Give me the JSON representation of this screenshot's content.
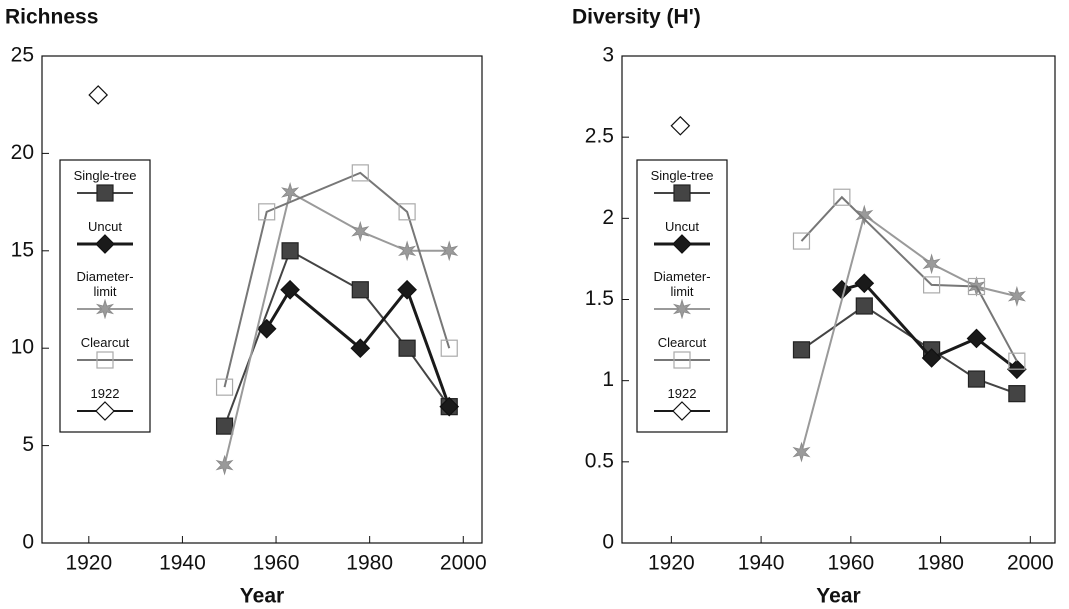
{
  "chart_data": [
    {
      "type": "line",
      "title": "Richness",
      "x_label": "Year",
      "xlim": [
        1910,
        2004
      ],
      "xticks": [
        1920,
        1940,
        1960,
        1980,
        2000
      ],
      "ylim": [
        0,
        25
      ],
      "yticks": [
        0,
        5,
        10,
        15,
        20,
        25
      ],
      "series": [
        {
          "name": "Single-tree",
          "color": "#444444",
          "marker": "square",
          "x": [
            1949,
            1963,
            1978,
            1988,
            1997
          ],
          "values": [
            6,
            15,
            13,
            10,
            7
          ]
        },
        {
          "name": "Uncut",
          "color": "#1a1a1a",
          "marker": "diamond",
          "x": [
            1958,
            1963,
            1978,
            1988,
            1997
          ],
          "values": [
            11,
            13,
            10,
            13,
            7
          ]
        },
        {
          "name": "Diameter-limit",
          "color": "#9a9a9a",
          "marker": "star",
          "x": [
            1949,
            1963,
            1978,
            1988,
            1997
          ],
          "values": [
            4,
            18,
            16,
            15,
            15
          ]
        },
        {
          "name": "Clearcut",
          "color": "#777777",
          "marker": "open-square",
          "x": [
            1949,
            1958,
            1978,
            1988,
            1997
          ],
          "values": [
            8,
            17,
            19,
            17,
            10
          ]
        },
        {
          "name": "1922",
          "color": "#1a1a1a",
          "marker": "open-diamond",
          "x": [
            1922
          ],
          "values": [
            23
          ]
        }
      ]
    },
    {
      "type": "line",
      "title": "Diversity (H')",
      "x_label": "Year",
      "xlim": [
        1909,
        2005.5
      ],
      "xticks": [
        1920,
        1940,
        1960,
        1980,
        2000
      ],
      "ylim": [
        0,
        3
      ],
      "yticks": [
        0,
        0.5,
        1,
        1.5,
        2,
        2.5,
        3
      ],
      "series": [
        {
          "name": "Single-tree",
          "color": "#444444",
          "marker": "square",
          "x": [
            1949,
            1963,
            1978,
            1988,
            1997
          ],
          "values": [
            1.19,
            1.46,
            1.19,
            1.01,
            0.92
          ]
        },
        {
          "name": "Uncut",
          "color": "#1a1a1a",
          "marker": "diamond",
          "x": [
            1958,
            1963,
            1978,
            1988,
            1997
          ],
          "values": [
            1.56,
            1.6,
            1.14,
            1.26,
            1.07
          ]
        },
        {
          "name": "Diameter-limit",
          "color": "#9a9a9a",
          "marker": "star",
          "x": [
            1949,
            1963,
            1978,
            1988,
            1997
          ],
          "values": [
            0.56,
            2.02,
            1.72,
            1.58,
            1.52
          ]
        },
        {
          "name": "Clearcut",
          "color": "#777777",
          "marker": "open-square",
          "x": [
            1949,
            1958,
            1978,
            1988,
            1997
          ],
          "values": [
            1.86,
            2.13,
            1.59,
            1.58,
            1.12
          ]
        },
        {
          "name": "1922",
          "color": "#1a1a1a",
          "marker": "open-diamond",
          "x": [
            1922
          ],
          "values": [
            2.57
          ]
        }
      ]
    }
  ]
}
